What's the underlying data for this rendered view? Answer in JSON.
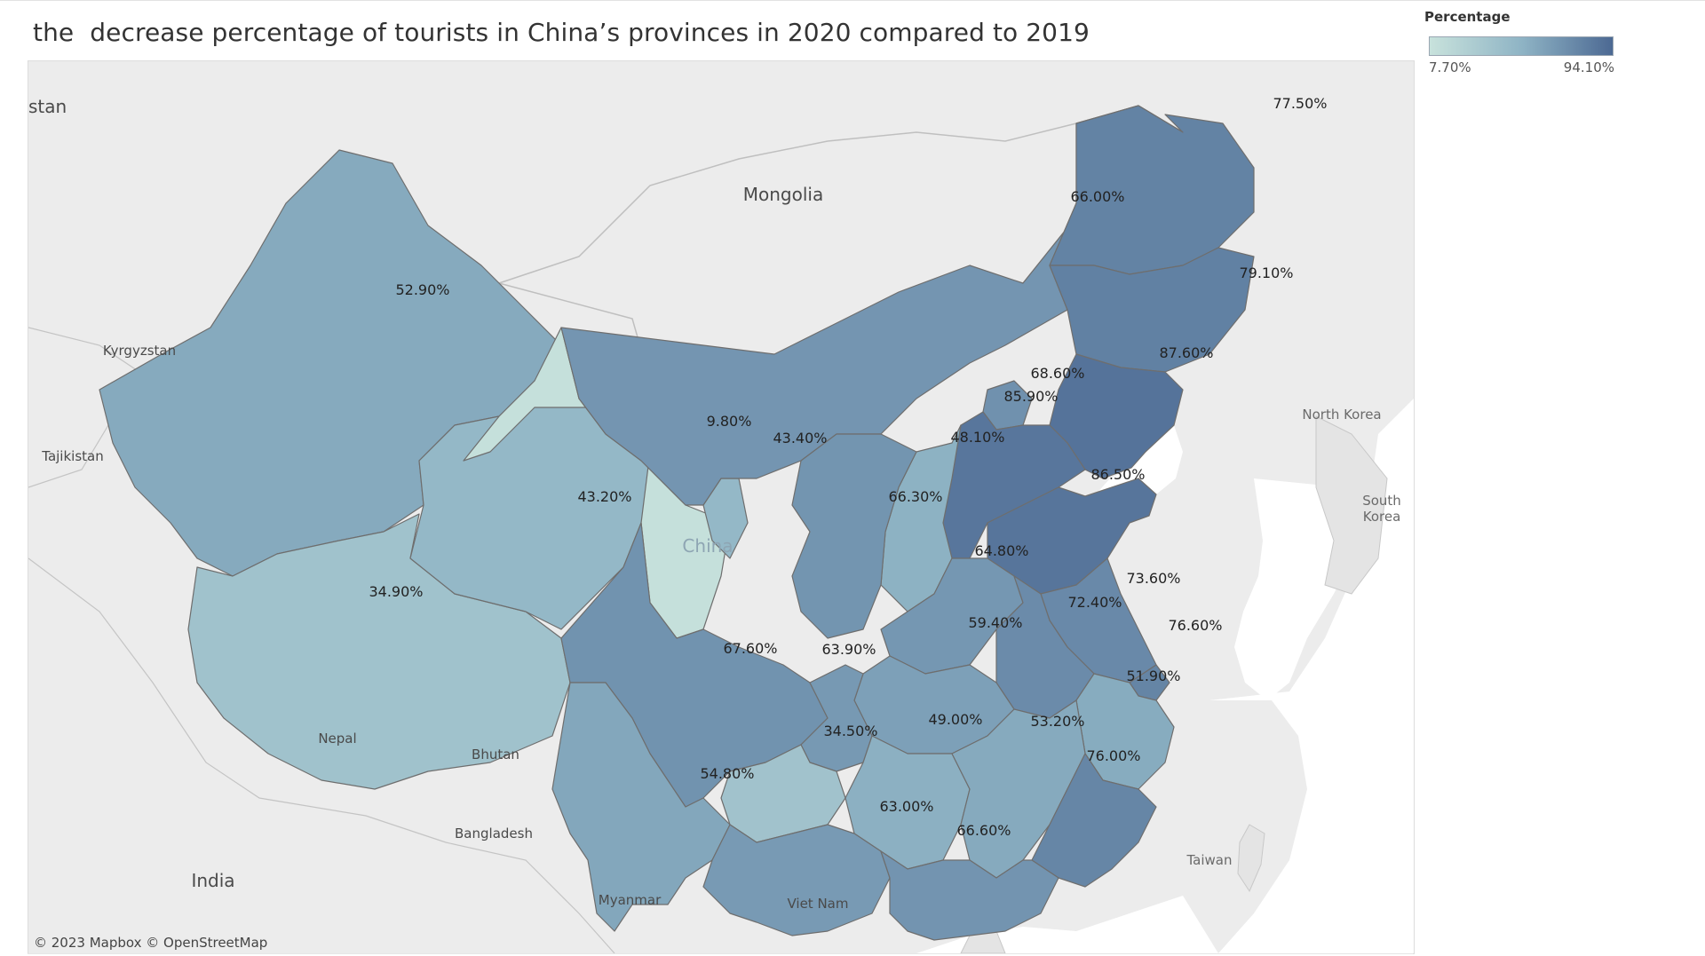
{
  "title": "the  decrease percentage of tourists in China’s provinces in 2020 compared to 2019",
  "legend": {
    "title": "Percentage",
    "min_label": "7.70%",
    "max_label": "94.10%",
    "min_value": 7.7,
    "max_value": 94.1,
    "color_low": "#c8e2dc",
    "color_high": "#4c6993"
  },
  "attribution": "© 2023 Mapbox  © OpenStreetMap",
  "map_labels": {
    "stan": "stan",
    "mongolia": "Mongolia",
    "kyrgyzstan": "Kyrgyzstan",
    "tajikistan": "Tajikistan",
    "north_korea": "North Korea",
    "south_korea": "South\nKorea",
    "china": "China",
    "nepal": "Nepal",
    "bhutan": "Bhutan",
    "bangladesh": "Bangladesh",
    "india": "India",
    "myanmar": "Myanmar",
    "viet_nam": "Viet Nam",
    "taiwan": "Taiwan"
  },
  "regions": {
    "xinjiang": {
      "value": 52.9,
      "label": "52.90%"
    },
    "tibet": {
      "value": 34.9,
      "label": "34.90%"
    },
    "qinghai": {
      "value": 43.2,
      "label": "43.20%"
    },
    "gansu": {
      "value": 9.8,
      "label": "9.80%"
    },
    "ningxia": {
      "value": 43.4,
      "label": "43.40%"
    },
    "inner_mongolia": {
      "value": 66.0,
      "label": "66.00%"
    },
    "heilongjiang": {
      "value": 77.5,
      "label": "77.50%"
    },
    "jilin": {
      "value": 79.1,
      "label": "79.10%"
    },
    "liaoning": {
      "value": 87.6,
      "label": "87.60%"
    },
    "beijing": {
      "value": 68.6,
      "label": "68.60%"
    },
    "hebei": {
      "value": 85.9,
      "label": "85.90%"
    },
    "shanxi": {
      "value": 48.1,
      "label": "48.10%"
    },
    "shaanxi": {
      "value": 66.3,
      "label": "66.30%"
    },
    "shandong": {
      "value": 86.5,
      "label": "86.50%"
    },
    "henan": {
      "value": 64.8,
      "label": "64.80%"
    },
    "jiangsu": {
      "value": 73.6,
      "label": "73.60%"
    },
    "anhui": {
      "value": 72.4,
      "label": "72.40%"
    },
    "shanghai": {
      "value": 76.6,
      "label": "76.60%"
    },
    "hubei": {
      "value": 59.4,
      "label": "59.40%"
    },
    "sichuan": {
      "value": 67.6,
      "label": "67.60%"
    },
    "chongqing": {
      "value": 63.9,
      "label": "63.90%"
    },
    "zhejiang": {
      "value": 51.9,
      "label": "51.90%"
    },
    "guizhou": {
      "value": 34.5,
      "label": "34.50%"
    },
    "hunan": {
      "value": 49.0,
      "label": "49.00%"
    },
    "jiangxi": {
      "value": 53.2,
      "label": "53.20%"
    },
    "fujian": {
      "value": 76.0,
      "label": "76.00%"
    },
    "yunnan": {
      "value": 54.8,
      "label": "54.80%"
    },
    "guangxi": {
      "value": 63.0,
      "label": "63.00%"
    },
    "guangdong": {
      "value": 66.6,
      "label": "66.60%"
    }
  }
}
